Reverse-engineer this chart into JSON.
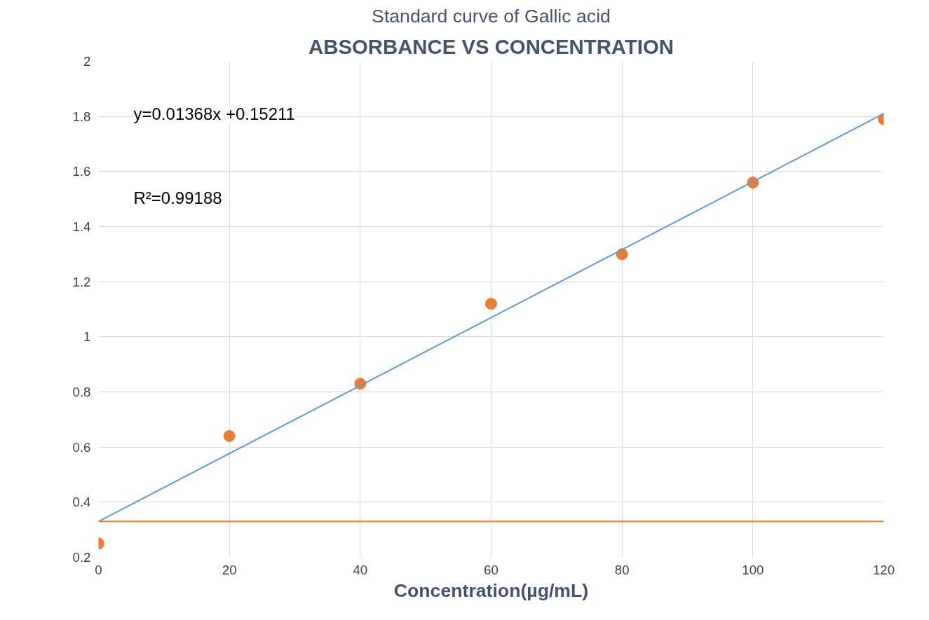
{
  "chart_data": {
    "type": "scatter",
    "title": "Standard curve of Gallic acid",
    "subtitle": "ABSORBANCE VS CONCENTRATION",
    "xlabel": "Concentration(µg/mL)",
    "x": [
      0,
      20,
      40,
      60,
      80,
      100,
      120
    ],
    "series": [
      {
        "color": "#ed7d31",
        "values": [
          0.25,
          0.64,
          0.83,
          1.12,
          1.3,
          1.56,
          1.79
        ]
      },
      {
        "type": "line",
        "marker": "none",
        "color": "#5b9bd5",
        "x": [
          0,
          120
        ],
        "values": [
          0.33,
          1.81
        ]
      }
    ],
    "ref_lines": [
      {
        "axis": "y",
        "value": 0.33,
        "label": null,
        "color": "#ed7d31"
      }
    ],
    "annotations": [
      "y=0.01368x +0.15211",
      "R²=0.99188"
    ],
    "xlim": [
      0,
      120
    ],
    "ylim": [
      0.2,
      2
    ],
    "xticks": [
      0,
      20,
      40,
      60,
      80,
      100,
      120
    ],
    "yticks": [
      0.2,
      0.4,
      0.6,
      0.8,
      1,
      1.2,
      1.4,
      1.6,
      1.8,
      2
    ],
    "grid": true,
    "marker": "circle"
  }
}
